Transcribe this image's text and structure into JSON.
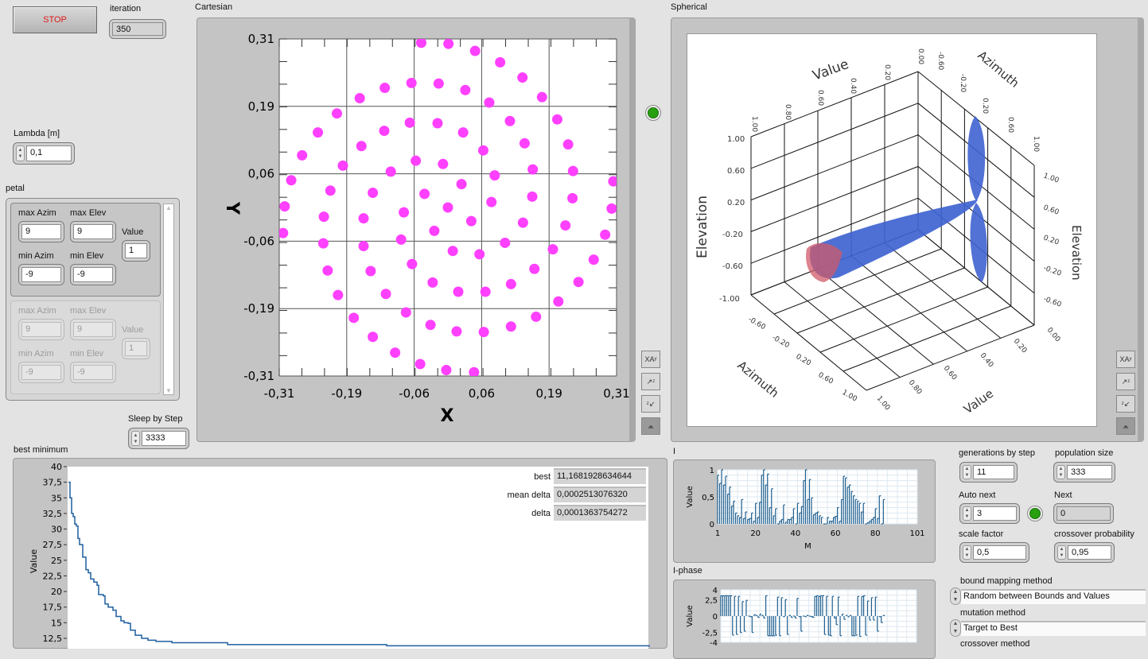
{
  "stop_button": {
    "label": "STOP",
    "color": "#e01818"
  },
  "iteration": {
    "label": "iteration",
    "value": "350"
  },
  "lambda": {
    "label": "Lambda [m]",
    "value": "0,1"
  },
  "petal": {
    "label": "petal",
    "items": [
      {
        "max_azim_label": "max Azim",
        "max_azim": "9",
        "max_elev_label": "max Elev",
        "max_elev": "9",
        "value_label": "Value",
        "value": "1",
        "min_azim_label": "min Azim",
        "min_azim": "-9",
        "min_elev_label": "min Elev",
        "min_elev": "-9"
      },
      {
        "max_azim_label": "max Azim",
        "max_azim": "9",
        "max_elev_label": "max Elev",
        "max_elev": "9",
        "value_label": "Value",
        "value": "1",
        "min_azim_label": "min Azim",
        "min_azim": "-9",
        "min_elev_label": "min Elev",
        "min_elev": "-9"
      }
    ]
  },
  "sleep_by_step": {
    "label": "Sleep by Step",
    "value": "3333"
  },
  "cartesian": {
    "label": "Cartesian",
    "chart_data": {
      "type": "scatter",
      "xlabel": "X",
      "ylabel": "Y",
      "xlim": [
        -0.31,
        0.31
      ],
      "ylim": [
        -0.31,
        0.31
      ],
      "grid": true,
      "x_ticks": [
        "-0,31",
        "-0,19",
        "-0,06",
        "0,06",
        "0,19",
        "0,31"
      ],
      "y_ticks": [
        "0,31",
        "0,19",
        "0,06",
        "-0,06",
        "-0,19",
        "-0,31"
      ],
      "color": "#ff40ff",
      "points": [
        [
          -0.049,
          0.303
        ],
        [
          0.001,
          0.301
        ],
        [
          0.05,
          0.288
        ],
        [
          0.096,
          0.267
        ],
        [
          0.137,
          0.239
        ],
        [
          0.173,
          0.203
        ],
        [
          0.201,
          0.162
        ],
        [
          0.221,
          0.116
        ],
        [
          0.23,
          0.067
        ],
        [
          0.229,
          0.017
        ],
        [
          0.216,
          -0.033
        ],
        [
          0.193,
          -0.077
        ],
        [
          0.268,
          -0.096
        ],
        [
          0.24,
          -0.137
        ],
        [
          0.203,
          -0.173
        ],
        [
          0.162,
          -0.201
        ],
        [
          0.116,
          -0.219
        ],
        [
          0.066,
          -0.229
        ],
        [
          0.016,
          -0.228
        ],
        [
          -0.032,
          -0.216
        ],
        [
          -0.077,
          -0.193
        ],
        [
          -0.114,
          -0.159
        ],
        [
          -0.142,
          -0.117
        ],
        [
          -0.155,
          -0.071
        ],
        [
          -0.155,
          -0.02
        ],
        [
          -0.138,
          0.027
        ],
        [
          -0.105,
          0.066
        ],
        [
          -0.059,
          0.086
        ],
        [
          -0.009,
          0.08
        ],
        [
          0.025,
          0.043
        ],
        [
          0.0,
          0.0
        ],
        [
          -0.043,
          0.025
        ],
        [
          -0.081,
          -0.009
        ],
        [
          -0.086,
          -0.059
        ],
        [
          -0.066,
          -0.104
        ],
        [
          -0.028,
          -0.138
        ],
        [
          0.019,
          -0.155
        ],
        [
          0.069,
          -0.155
        ],
        [
          0.116,
          -0.141
        ],
        [
          0.159,
          -0.113
        ],
        [
          0.138,
          -0.028
        ],
        [
          0.155,
          0.02
        ],
        [
          0.156,
          0.07
        ],
        [
          0.141,
          0.118
        ],
        [
          0.114,
          0.159
        ],
        [
          0.076,
          0.193
        ],
        [
          0.032,
          0.216
        ],
        [
          -0.017,
          0.228
        ],
        [
          -0.067,
          0.229
        ],
        [
          -0.116,
          0.22
        ],
        [
          -0.162,
          0.201
        ],
        [
          -0.204,
          0.173
        ],
        [
          -0.239,
          0.138
        ],
        [
          -0.268,
          0.096
        ],
        [
          -0.288,
          0.05
        ],
        [
          -0.3,
          0.002
        ],
        [
          -0.303,
          -0.047
        ],
        [
          -0.229,
          -0.066
        ],
        [
          -0.228,
          -0.017
        ],
        [
          -0.216,
          0.031
        ],
        [
          -0.193,
          0.077
        ],
        [
          -0.159,
          0.113
        ],
        [
          -0.117,
          0.141
        ],
        [
          -0.07,
          0.156
        ],
        [
          -0.019,
          0.155
        ],
        [
          0.028,
          0.138
        ],
        [
          0.065,
          0.105
        ],
        [
          0.086,
          0.059
        ],
        [
          0.08,
          0.01
        ],
        [
          0.043,
          -0.025
        ],
        [
          0.009,
          -0.08
        ],
        [
          0.058,
          -0.086
        ],
        [
          0.105,
          -0.065
        ],
        [
          -0.025,
          -0.043
        ],
        [
          -0.221,
          -0.116
        ],
        [
          -0.202,
          -0.161
        ],
        [
          -0.173,
          -0.203
        ],
        [
          -0.138,
          -0.238
        ],
        [
          -0.097,
          -0.267
        ],
        [
          -0.051,
          -0.288
        ],
        [
          -0.003,
          -0.299
        ],
        [
          0.048,
          -0.303
        ],
        [
          0.304,
          0.048
        ],
        [
          0.301,
          -0.002
        ],
        [
          0.289,
          -0.05
        ]
      ]
    }
  },
  "cartesian_led": {
    "on": true,
    "color": "#28a010"
  },
  "spherical": {
    "label": "Spherical",
    "axis_labels": {
      "value_top": "Value",
      "azimuth_top": "Azimuth",
      "elevation_left": "Elevation",
      "elevation_right": "Elevation",
      "azimuth_bottom": "Azimuth",
      "value_bottom": "Value"
    },
    "value_ticks_top": [
      "1.00",
      "0.80",
      "0.60",
      "0.40",
      "0.20",
      "0.00"
    ],
    "azimuth_ticks_top": [
      "-0.60",
      "-0.20",
      "0.20",
      "0.60",
      "1.00"
    ],
    "elevation_ticks_left": [
      "1.00",
      "0.60",
      "0.20",
      "-0.20",
      "-0.60",
      "-1.00"
    ],
    "elevation_ticks_right": [
      "1.00",
      "0.60",
      "0.20",
      "-0.20",
      "-0.60"
    ],
    "azimuth_ticks_bottom": [
      "-0.60",
      "-0.20",
      "0.20",
      "0.60",
      "1.00"
    ],
    "value_ticks_bottom": [
      "1.00",
      "0.80",
      "0.60",
      "0.40",
      "0.20",
      "0.00"
    ],
    "lobe_color": "#3f63d0",
    "cap_color": "#d05a6a"
  },
  "palette_buttons": [
    "rotate-xy",
    "rotate-xz",
    "rotate-zy",
    "reset-view"
  ],
  "best_minimum": {
    "label": "best minimum",
    "chart_data": {
      "type": "line",
      "ylabel": "Value",
      "ylim": [
        10,
        40
      ],
      "y_ticks": [
        "40",
        "37,5",
        "35",
        "32,5",
        "30",
        "27,5",
        "25",
        "22,5",
        "20",
        "17,5",
        "15",
        "12,5"
      ],
      "color": "#1f5f9f",
      "x": [
        0,
        2,
        4,
        6,
        8,
        10,
        12,
        14,
        18,
        20,
        22,
        25,
        28,
        32,
        36,
        38,
        44,
        46,
        50,
        56,
        60,
        66,
        70,
        75,
        78,
        84,
        92,
        100,
        110,
        130,
        200,
        400,
        730
      ],
      "y": [
        37.5,
        35,
        32.5,
        32,
        30.8,
        30.5,
        28.5,
        27.5,
        25.5,
        25.5,
        23.5,
        23,
        22,
        21.5,
        21,
        19.5,
        19.3,
        18,
        17.5,
        17,
        16,
        15.3,
        15,
        14.9,
        13.8,
        13,
        12.5,
        12.2,
        12,
        11.8,
        11.5,
        11.3,
        11.17
      ]
    },
    "readouts": [
      {
        "label": "best",
        "value": "11,1681928634644"
      },
      {
        "label": "mean delta",
        "value": "0,0002513076320"
      },
      {
        "label": "delta",
        "value": "0,0001363754272"
      }
    ]
  },
  "i_chart": {
    "label": "I",
    "chart_data": {
      "type": "bar",
      "xlabel": "M",
      "ylabel": "Value",
      "xlim": [
        1,
        101
      ],
      "ylim": [
        0,
        1
      ],
      "x_ticks": [
        "1",
        "20",
        "40",
        "60",
        "80",
        "101"
      ],
      "y_ticks": [
        "1",
        "0,5",
        "0"
      ],
      "color": "#1f5f8f",
      "values": [
        0.9,
        0.75,
        1.0,
        0.72,
        0.88,
        0.55,
        0.68,
        0.33,
        0.42,
        0.2,
        0.15,
        0.12,
        0.45,
        0.1,
        0.22,
        0.08,
        0.1,
        0.2,
        0.05,
        0.38,
        0.12,
        0.4,
        0.9,
        1.0,
        0.72,
        0.92,
        0.3,
        0.65,
        0.15,
        0.28,
        0.0,
        0.05,
        0.08,
        0.35,
        0.03,
        0.08,
        0.08,
        0.12,
        0.28,
        0.0,
        0.38,
        0.2,
        0.32,
        0.8,
        1.0,
        0.45,
        0.82,
        0.48,
        0.17,
        0.2,
        0.22,
        0.15,
        0.12,
        0.0,
        0.0,
        0.12,
        0.05,
        0.05,
        0.12,
        0.14,
        0.3,
        0.05,
        0.45,
        0.88,
        0.85,
        0.68,
        0.72,
        0.6,
        0.52,
        0.45,
        0.42,
        0.38,
        0.22,
        0.38,
        0.0,
        0.02,
        0.05,
        0.08,
        0.12,
        0.28,
        0.1,
        0.52,
        0.0,
        0.45
      ]
    }
  },
  "i_phase_chart": {
    "label": "I-phase",
    "chart_data": {
      "type": "bar",
      "ylabel": "Value",
      "xlim": [
        1,
        101
      ],
      "ylim": [
        -4,
        4
      ],
      "y_ticks": [
        "4",
        "2,5",
        "0",
        "-2,5",
        "-4"
      ],
      "color": "#1f5f8f",
      "values": [
        3.1,
        3.1,
        3.1,
        3.1,
        3.1,
        3.1,
        -2.9,
        3.0,
        -2.8,
        3.0,
        -2.5,
        2.2,
        -2.3,
        2.4,
        0,
        -0.1,
        -2.5,
        0.2,
        0.1,
        -0.2,
        0.3,
        0.1,
        -0.3,
        3.1,
        -3.0,
        -3.0,
        -3.0,
        -3.0,
        -2.9,
        2.9,
        -3.0,
        2.8,
        -0.1,
        2.5,
        -2.8,
        0.1,
        -0.2,
        0,
        -0.3,
        2.7,
        -0.1,
        -2.3,
        0,
        -0.1,
        0.1,
        0,
        -0.1,
        -0.2,
        3.0,
        3.1,
        3.0,
        3.1,
        3.1,
        -2.8,
        3.0,
        -2.9,
        -3.0,
        3.0,
        -0.3,
        -1.3,
        2.9,
        -3.0,
        0.3,
        -0.5,
        0.1,
        -0.1,
        0.1,
        -3.0,
        -3.0,
        -2.9,
        3.0,
        -3.1,
        3.0,
        3.1,
        -2.9,
        2.3,
        -0.6,
        2.8,
        -0.6,
        2.9,
        -2.3,
        -0.1,
        -1.0,
        0.1
      ]
    }
  },
  "de_settings": {
    "generations_by_step": {
      "label": "generations by step",
      "value": "11"
    },
    "population_size": {
      "label": "population size",
      "value": "333"
    },
    "auto_next": {
      "label": "Auto next",
      "value": "3"
    },
    "next": {
      "label": "Next",
      "value": "0"
    },
    "scale_factor": {
      "label": "scale factor",
      "value": "0,5"
    },
    "crossover_probability": {
      "label": "crossover probability",
      "value": "0,95"
    },
    "bound_mapping_method": {
      "label": "bound mapping method",
      "value": "Random between Bounds and Values"
    },
    "mutation_method": {
      "label": "mutation method",
      "value": "Target to Best"
    },
    "crossover_method": {
      "label": "crossover method"
    }
  }
}
